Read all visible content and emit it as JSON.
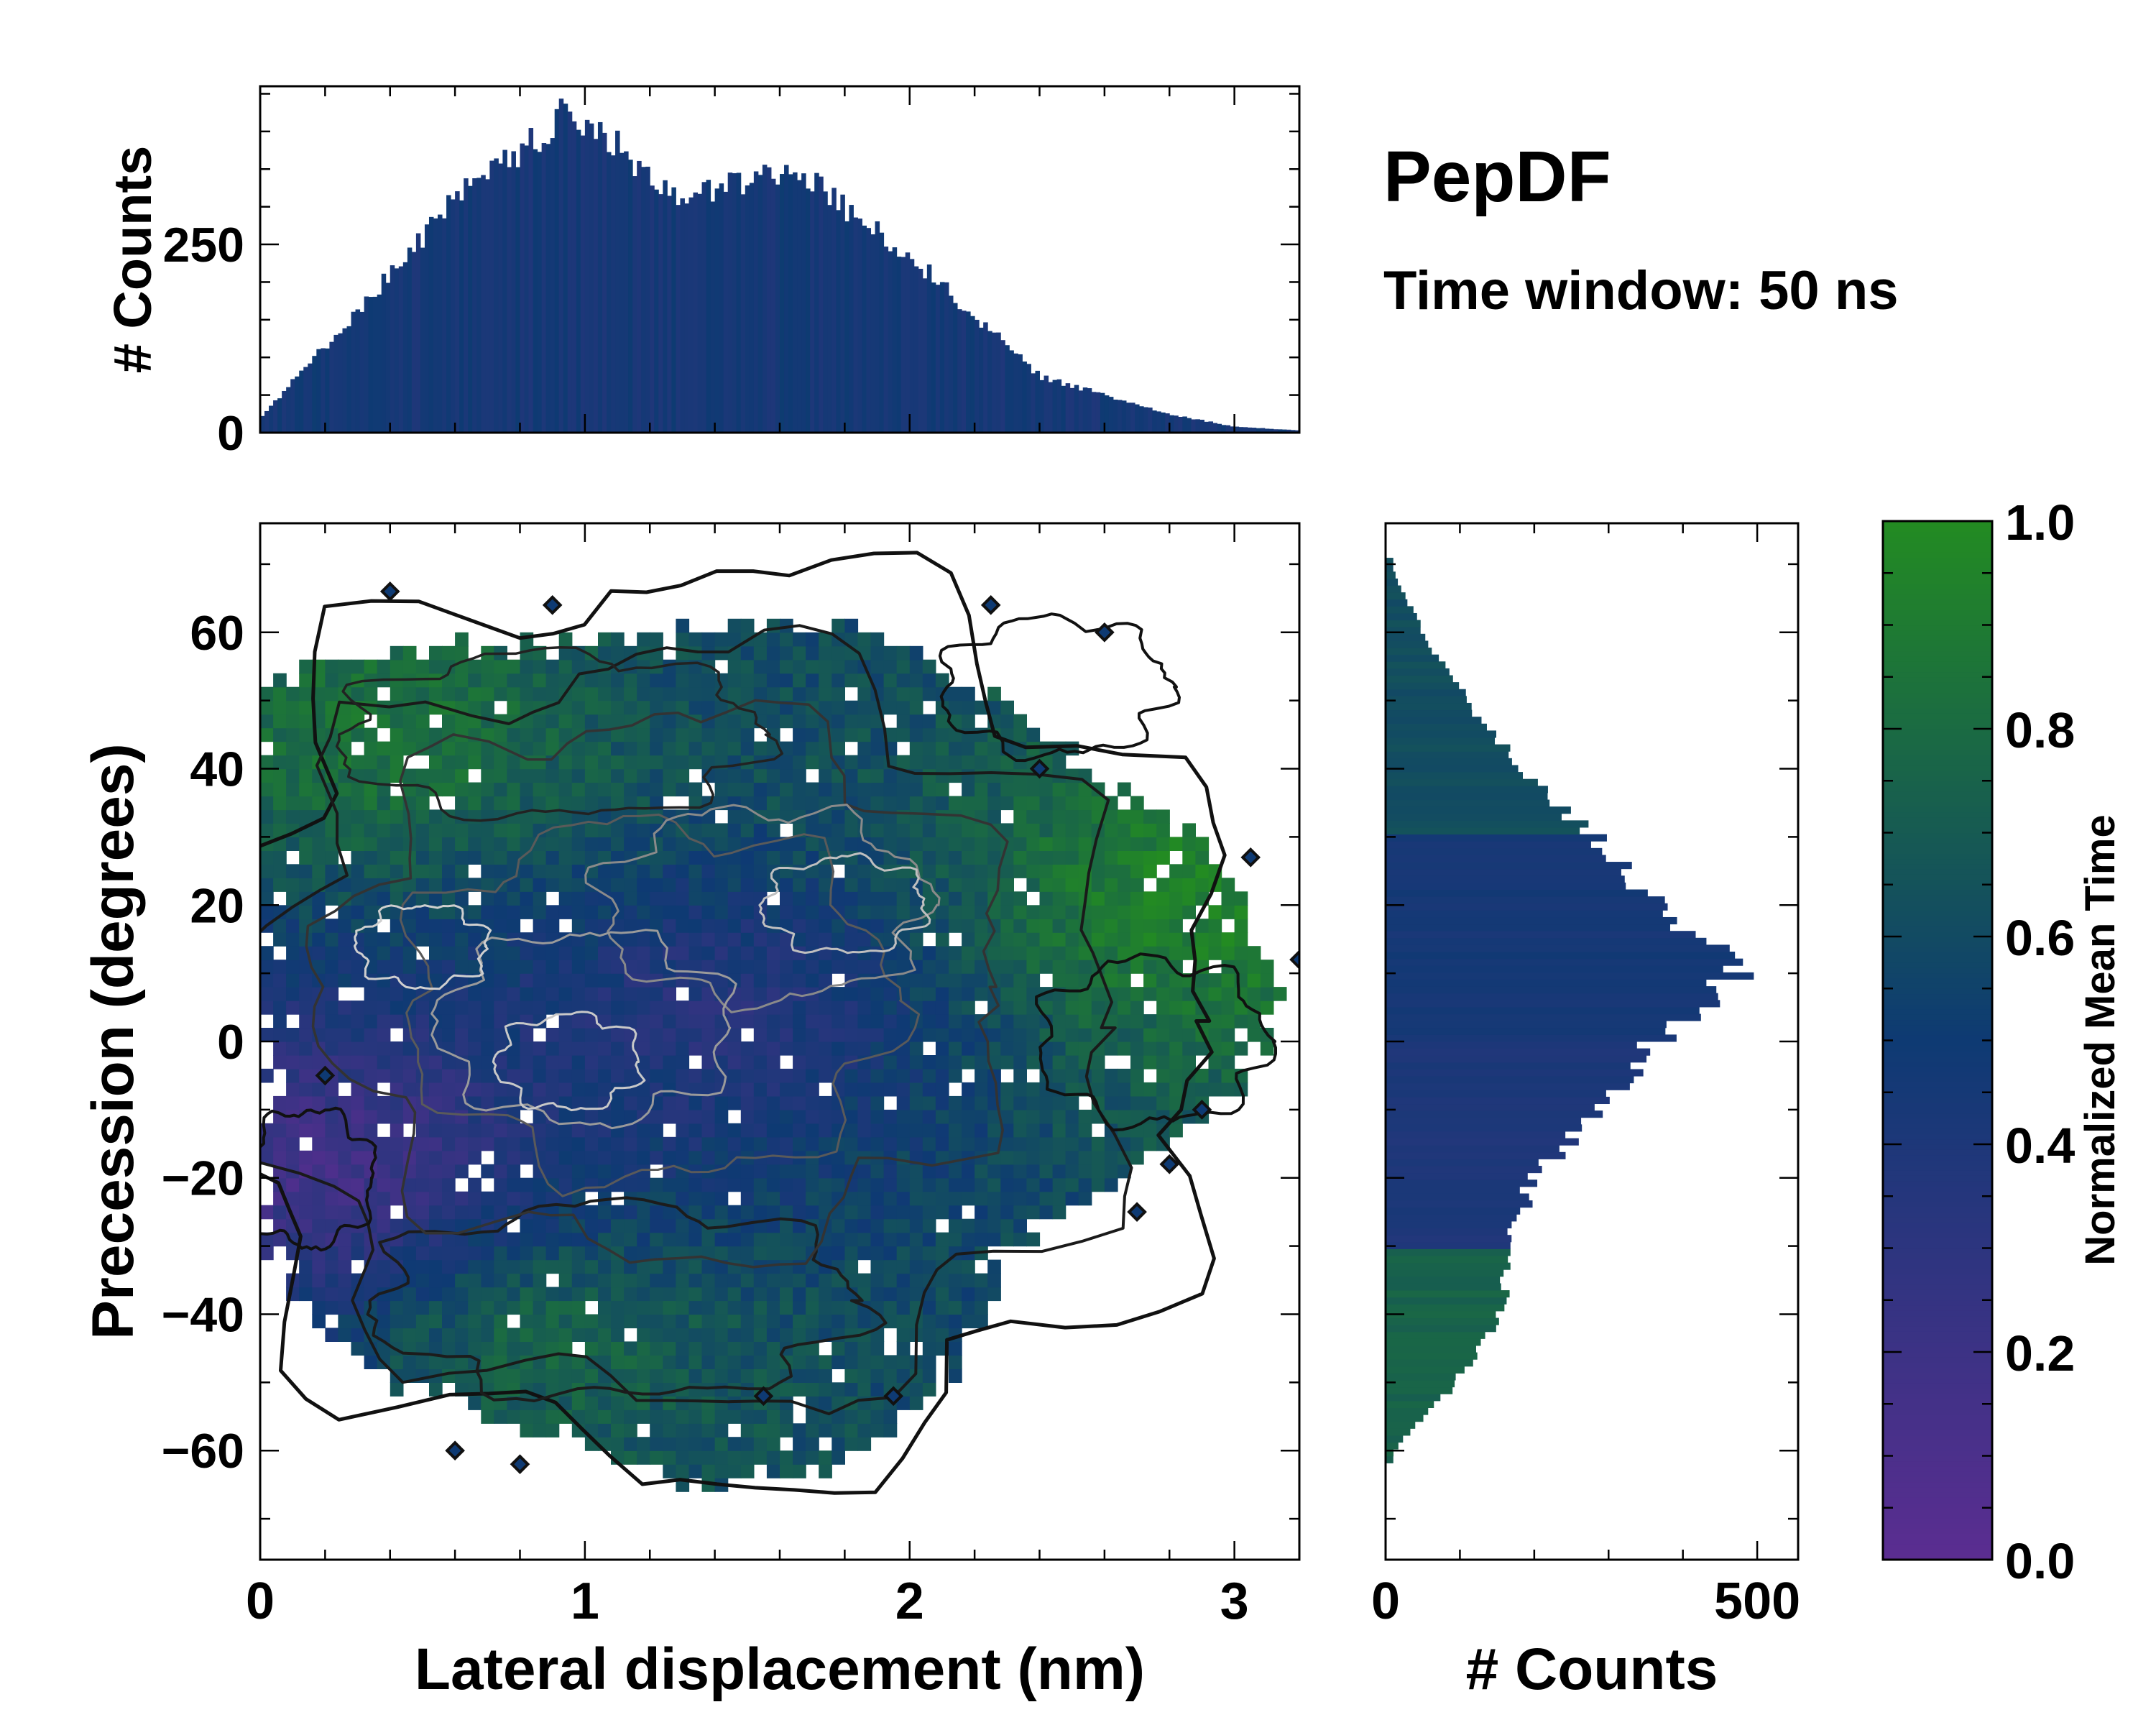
{
  "title": "PepDF",
  "subtitle": "Time window: 50 ns",
  "colors": {
    "cmap_low": "#5b2d91",
    "cmap_mid": "#0e3a73",
    "cmap_high": "#238b22",
    "hist": "#0e3a73",
    "contour_dark": "#111111",
    "contour_light": "#bfbfbf"
  },
  "chart_data": [
    {
      "type": "heatmap",
      "name": "main",
      "xlabel": "Lateral displacement (nm)",
      "ylabel": "Precession (degrees)",
      "xlim": [
        0,
        3.2
      ],
      "ylim": [
        -76,
        76
      ],
      "xticks": [
        0,
        1,
        2,
        3
      ],
      "yticks": [
        -60,
        -40,
        -20,
        0,
        20,
        40,
        60
      ],
      "ytick_labels": [
        "−60",
        "−40",
        "−20",
        "0",
        "20",
        "40",
        "60"
      ],
      "x_mid": 1.35,
      "y_mid": 3,
      "cloud_x_extent": [
        0.0,
        3.15
      ],
      "cloud_y_extent": [
        -64,
        74
      ],
      "value_regions": [
        {
          "region": "lower-left",
          "x": 0.2,
          "y": -18,
          "value": 0.15
        },
        {
          "region": "upper-left",
          "x": 0.4,
          "y": 45,
          "value": 0.85
        },
        {
          "region": "bottom",
          "x": 0.9,
          "y": -45,
          "value": 0.75
        },
        {
          "region": "upper-middle",
          "x": 1.6,
          "y": 60,
          "value": 0.6
        },
        {
          "region": "right",
          "x": 2.9,
          "y": 22,
          "value": 0.95
        },
        {
          "region": "center",
          "x": 1.4,
          "y": 5,
          "value": 0.35
        }
      ]
    },
    {
      "type": "bar",
      "name": "top-histogram",
      "ylabel": "# Counts",
      "xlim": [
        0,
        3.2
      ],
      "ylim": [
        0,
        460
      ],
      "yticks": [
        0,
        250
      ],
      "x": [
        0.0,
        0.2,
        0.4,
        0.6,
        0.8,
        0.93,
        1.05,
        1.2,
        1.3,
        1.45,
        1.6,
        1.7,
        1.85,
        2.0,
        2.2,
        2.4,
        2.6,
        2.8,
        3.0,
        3.2
      ],
      "values": [
        20,
        115,
        210,
        310,
        370,
        420,
        395,
        345,
        305,
        330,
        345,
        335,
        280,
        235,
        155,
        75,
        50,
        25,
        8,
        3
      ],
      "n_bins": 240
    },
    {
      "type": "bar",
      "name": "right-histogram",
      "orientation": "horizontal",
      "xlabel": "# Counts",
      "xlim": [
        0,
        555
      ],
      "ylim": [
        -76,
        76
      ],
      "xticks": [
        0,
        500
      ],
      "y": [
        -60,
        -50,
        -40,
        -30,
        -20,
        -10,
        0,
        5,
        12,
        20,
        30,
        40,
        50,
        60,
        69
      ],
      "values": [
        10,
        95,
        155,
        165,
        200,
        290,
        360,
        430,
        480,
        360,
        280,
        185,
        110,
        50,
        10
      ],
      "n_bins": 150
    },
    {
      "type": "colorbar",
      "name": "colorbar",
      "label": "Normalized Mean Time",
      "lim": [
        0.0,
        1.0
      ],
      "ticks": [
        "0.0",
        "0.2",
        "0.4",
        "0.6",
        "0.8",
        "1.0"
      ]
    }
  ]
}
